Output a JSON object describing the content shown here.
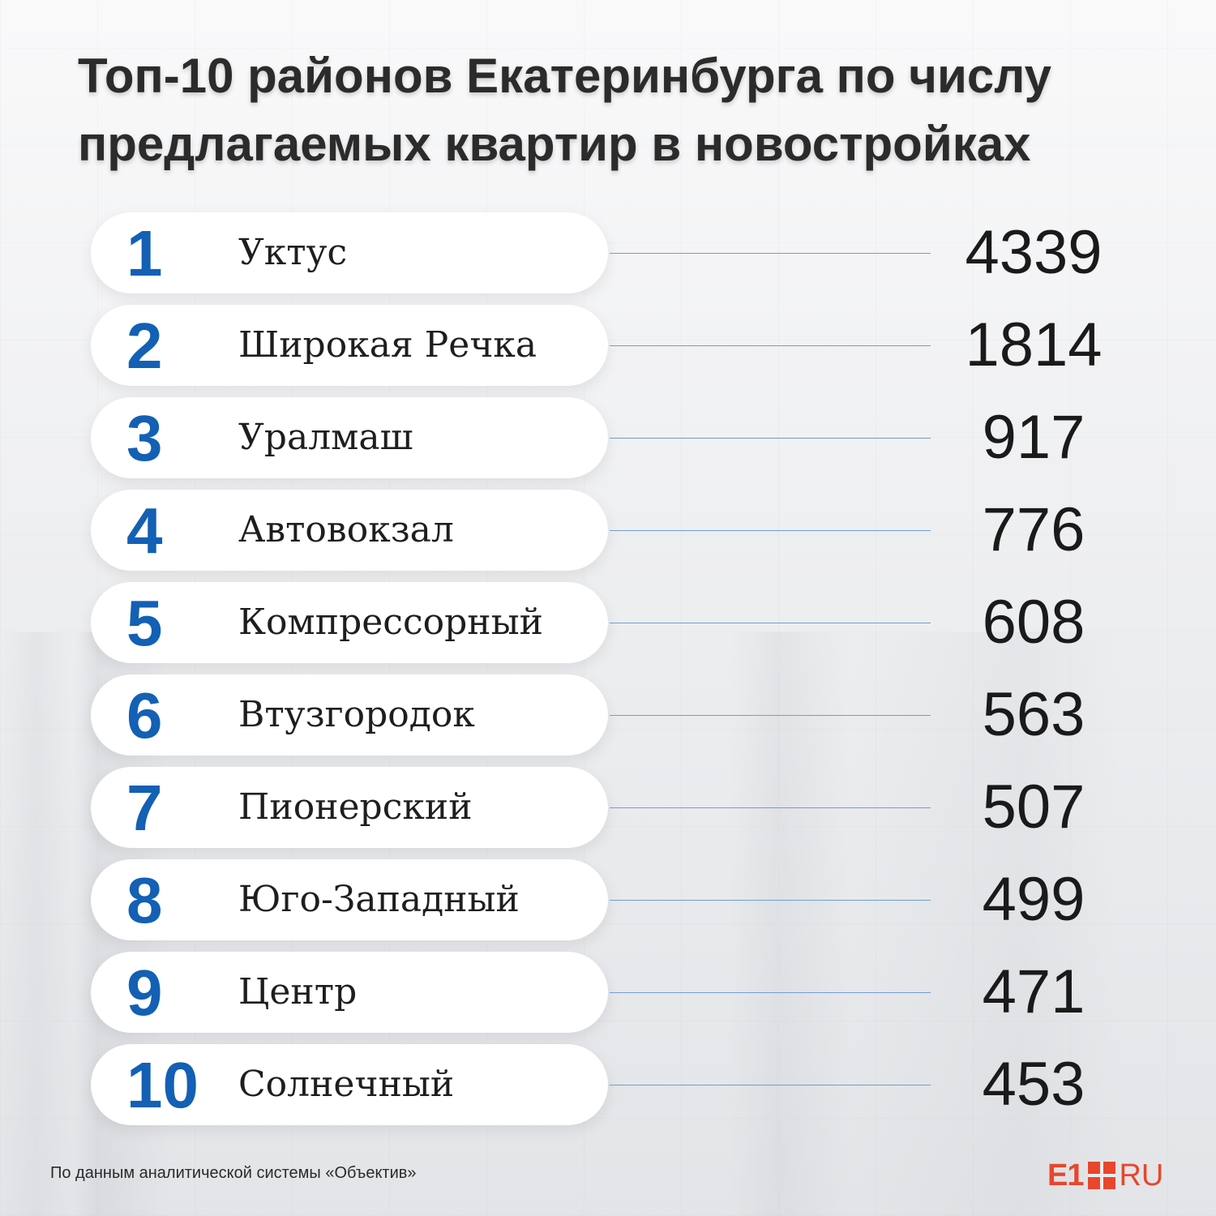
{
  "title": "Топ-10 районов Екатеринбурга по числу предлагаемых квартир в новостройках",
  "source": "По данным аналитической системы «Объектив»",
  "logo": {
    "left": "E1",
    "right": "RU"
  },
  "colors": {
    "rank": "#1360b4",
    "leader": "#6f9ed3",
    "pill": "#ffffff",
    "logo": "#e8462d"
  },
  "chart_data": {
    "type": "table",
    "title": "Топ-10 районов Екатеринбурга по числу предлагаемых квартир в новостройках",
    "rows": [
      {
        "rank": "1",
        "name": "Уктус",
        "value": 4339
      },
      {
        "rank": "2",
        "name": "Широкая Речка",
        "value": 1814
      },
      {
        "rank": "3",
        "name": "Уралмаш",
        "value": 917
      },
      {
        "rank": "4",
        "name": "Автовокзал",
        "value": 776
      },
      {
        "rank": "5",
        "name": "Компрессорный",
        "value": 608
      },
      {
        "rank": "6",
        "name": "Втузгородок",
        "value": 563
      },
      {
        "rank": "7",
        "name": "Пионерский",
        "value": 507
      },
      {
        "rank": "8",
        "name": "Юго-Западный",
        "value": 499
      },
      {
        "rank": "9",
        "name": "Центр",
        "value": 471
      },
      {
        "rank": "10",
        "name": "Солнечный",
        "value": 453
      }
    ]
  }
}
